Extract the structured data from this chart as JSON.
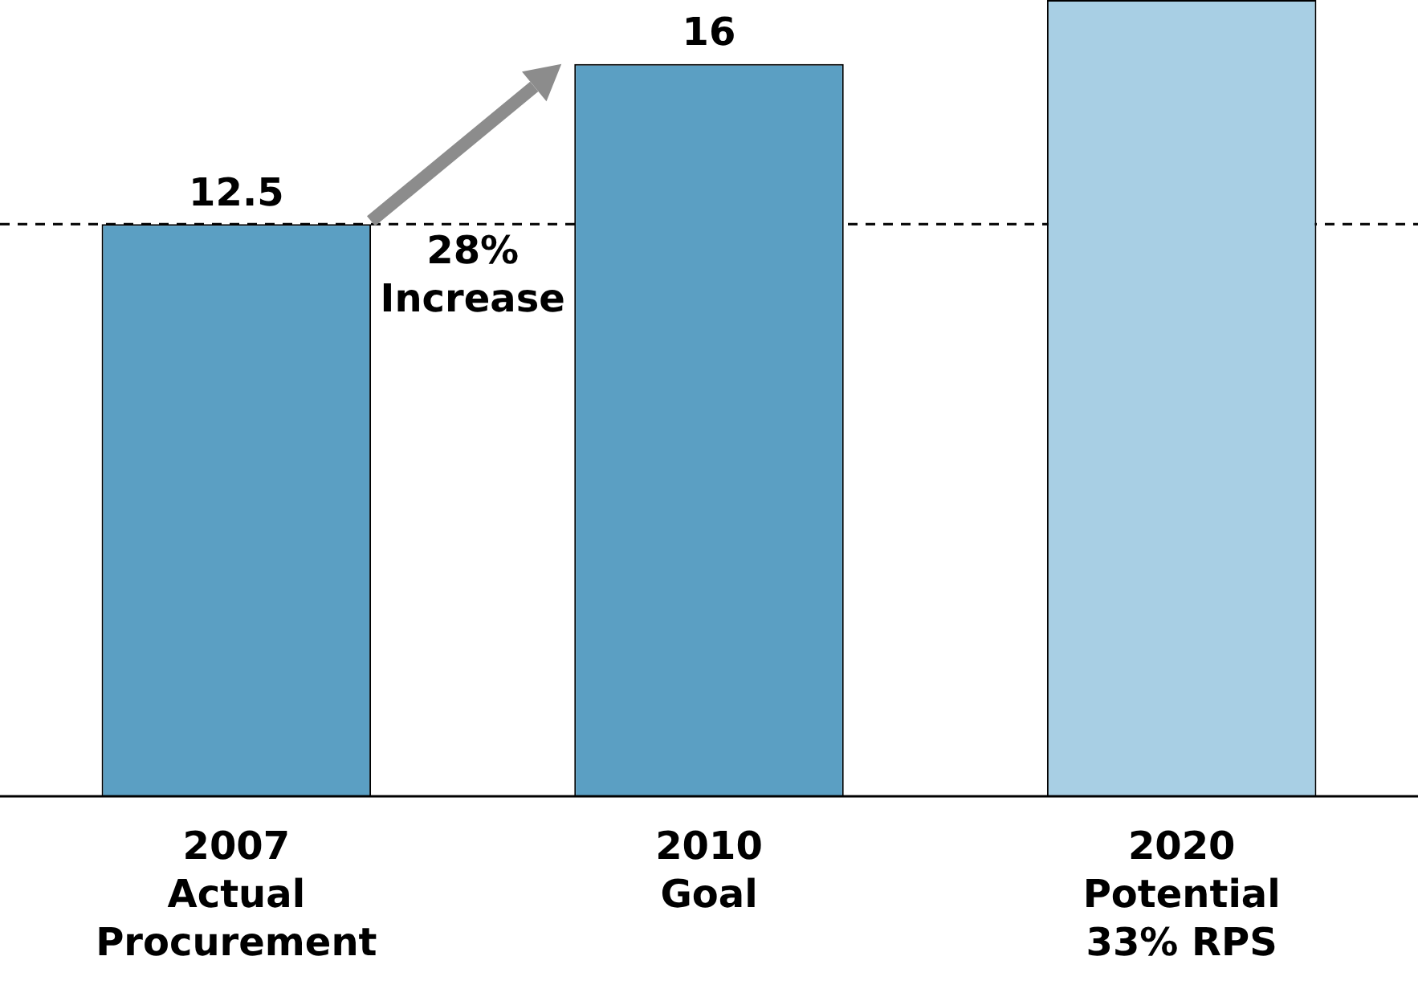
{
  "chart_data": {
    "type": "bar",
    "categories": [
      "2007\nActual\nProcurement",
      "2010\nGoal",
      "2020\nPotential\n33% RPS"
    ],
    "values": [
      12.5,
      16,
      17.4
    ],
    "colors": [
      "#5b9fc3",
      "#5b9fc3",
      "#a8cfe4"
    ],
    "value_labels": [
      "12.5",
      "16",
      null
    ],
    "ylim": [
      0,
      17.4
    ],
    "tick_labels": "x",
    "grid": false,
    "legend": false,
    "ref_lines": [
      {
        "axis": "y",
        "value": 12.5,
        "line_style": "dashed",
        "color": "#000000"
      }
    ],
    "annotations": [
      "28%\nIncrease"
    ]
  }
}
